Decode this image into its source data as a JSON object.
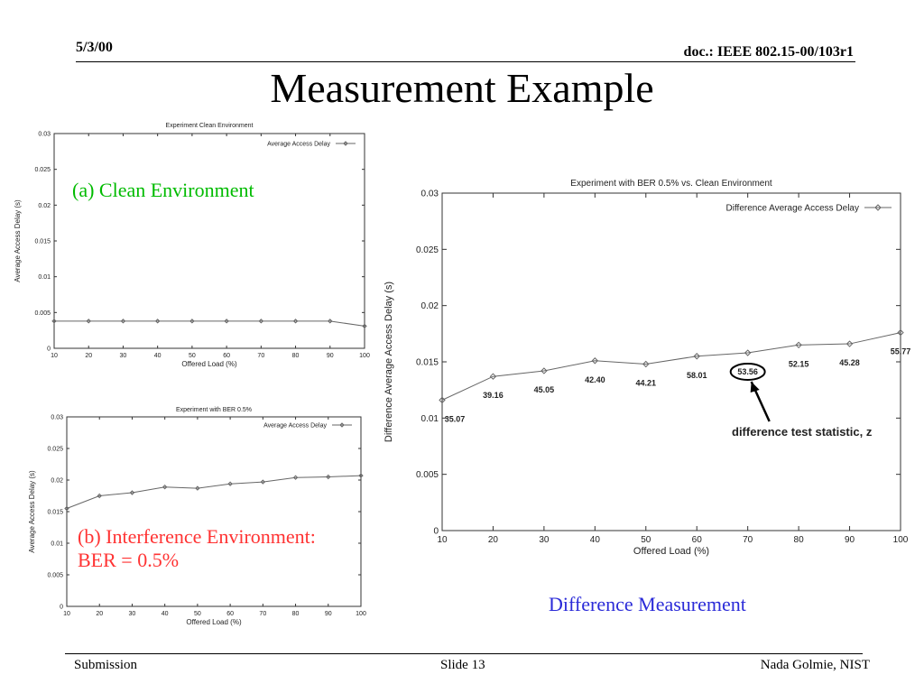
{
  "header": {
    "date": "5/3/00",
    "doc": "doc.: IEEE 802.15-00/103r1"
  },
  "title": "Measurement Example",
  "annotations": {
    "a": "(a) Clean Environment",
    "b_line1": "(b) Interference Environment:",
    "b_line2": "BER = 0.5%"
  },
  "caption_c": "Difference Measurement",
  "footer": {
    "left": "Submission",
    "center": "Slide 13",
    "right": "Nada Golmie, NIST"
  },
  "colors": {
    "annotation_a": "#00bb00",
    "annotation_b": "#ff3333",
    "caption": "#2b2bd8",
    "series": "#666666"
  },
  "chart_data": [
    {
      "type": "line",
      "title": "Experiment Clean Environment",
      "xlabel": "Offered Load (%)",
      "ylabel": "Average Access Delay (s)",
      "xlim": [
        10,
        100
      ],
      "ylim": [
        0,
        0.03
      ],
      "x_ticks": [
        "10",
        "20",
        "30",
        "40",
        "50",
        "60",
        "70",
        "80",
        "90",
        "100"
      ],
      "y_ticks": [
        "0",
        "0.005",
        "0.01",
        "0.015",
        "0.02",
        "0.025",
        "0.03"
      ],
      "grid": false,
      "legend": "top-right",
      "x": [
        10,
        20,
        30,
        40,
        50,
        60,
        70,
        80,
        90,
        100
      ],
      "series": [
        {
          "name": "Average Access Delay",
          "values": [
            0.0038,
            0.0038,
            0.0038,
            0.0038,
            0.0038,
            0.0038,
            0.0038,
            0.0038,
            0.0038,
            0.0031
          ]
        }
      ]
    },
    {
      "type": "line",
      "title": "Experiment with BER 0.5%",
      "xlabel": "Offered Load (%)",
      "ylabel": "Average Access Delay (s)",
      "xlim": [
        10,
        100
      ],
      "ylim": [
        0,
        0.03
      ],
      "x_ticks": [
        "10",
        "20",
        "30",
        "40",
        "50",
        "60",
        "70",
        "80",
        "90",
        "100"
      ],
      "y_ticks": [
        "0",
        "0.005",
        "0.01",
        "0.015",
        "0.02",
        "0.025",
        "0.03"
      ],
      "grid": false,
      "legend": "top-right",
      "x": [
        10,
        20,
        30,
        40,
        50,
        60,
        70,
        80,
        90,
        100
      ],
      "series": [
        {
          "name": "Average Access Delay",
          "values": [
            0.0155,
            0.0175,
            0.018,
            0.0189,
            0.0187,
            0.0194,
            0.0197,
            0.0204,
            0.0205,
            0.0207
          ]
        }
      ]
    },
    {
      "type": "line",
      "title": "Experiment with BER 0.5% vs. Clean Environment",
      "xlabel": "Offered Load (%)",
      "ylabel": "Difference Average Access Delay (s)",
      "xlim": [
        10,
        100
      ],
      "ylim": [
        0,
        0.03
      ],
      "x_ticks": [
        "10",
        "20",
        "30",
        "40",
        "50",
        "60",
        "70",
        "80",
        "90",
        "100"
      ],
      "y_ticks": [
        "0",
        "0.005",
        "0.01",
        "0.015",
        "0.02",
        "0.025",
        "0.03"
      ],
      "grid": false,
      "legend": "top-right",
      "x": [
        10,
        20,
        30,
        40,
        50,
        60,
        70,
        80,
        90,
        100
      ],
      "series": [
        {
          "name": "Difference Average Access Delay",
          "values": [
            0.0116,
            0.0137,
            0.0142,
            0.0151,
            0.0148,
            0.0155,
            0.0158,
            0.0165,
            0.0166,
            0.0176
          ]
        }
      ],
      "point_labels": [
        "35.07",
        "39.16",
        "45.05",
        "42.40",
        "44.21",
        "58.01",
        "53.56",
        "52.15",
        "45.28",
        "55.77"
      ],
      "highlighted_label": "53.56",
      "annotation": "difference test statistic, z"
    }
  ]
}
